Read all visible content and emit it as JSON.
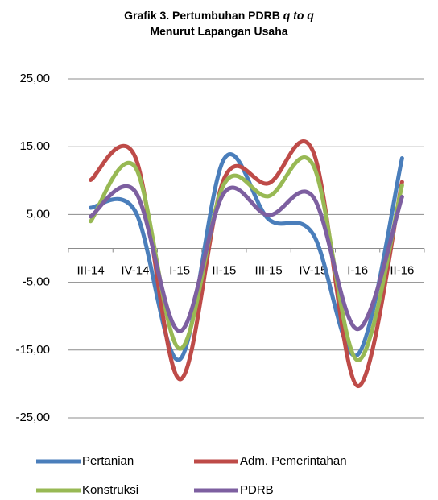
{
  "chart_data": {
    "type": "line",
    "title": "Grafik 3. Pertumbuhan PDRB",
    "title_italic": "q to q",
    "subtitle": "Menurut Lapangan Usaha",
    "categories": [
      "III-14",
      "IV-14",
      "I-15",
      "II-15",
      "III-15",
      "IV-15",
      "I-16",
      "II-16"
    ],
    "series": [
      {
        "name": "Pertanian",
        "color": "#4a7ebb",
        "values": [
          6.0,
          5.5,
          -16.4,
          13.2,
          4.3,
          2.1,
          -15.7,
          13.3
        ]
      },
      {
        "name": "Adm. Pemerintahan",
        "color": "#be4b48",
        "values": [
          10.1,
          13.5,
          -19.3,
          10.3,
          9.6,
          14.3,
          -20.3,
          9.8
        ]
      },
      {
        "name": "Konstruksi",
        "color": "#98b954",
        "values": [
          4.0,
          12.0,
          -14.8,
          9.5,
          7.7,
          12.3,
          -16.5,
          9.3
        ]
      },
      {
        "name": "PDRB",
        "color": "#7d5fa0",
        "values": [
          4.7,
          8.4,
          -12.2,
          8.2,
          4.9,
          7.6,
          -11.9,
          7.6
        ]
      }
    ],
    "ylim": [
      -25,
      25
    ],
    "yticks": [
      {
        "value": -25,
        "label": "-25,00"
      },
      {
        "value": -15,
        "label": "-15,00"
      },
      {
        "value": -5,
        "label": "-5,00"
      },
      {
        "value": 5,
        "label": "5,00"
      },
      {
        "value": 15,
        "label": "15,00"
      },
      {
        "value": 25,
        "label": "25,00"
      }
    ],
    "grid": true,
    "smooth": true,
    "legend": "bottom"
  }
}
